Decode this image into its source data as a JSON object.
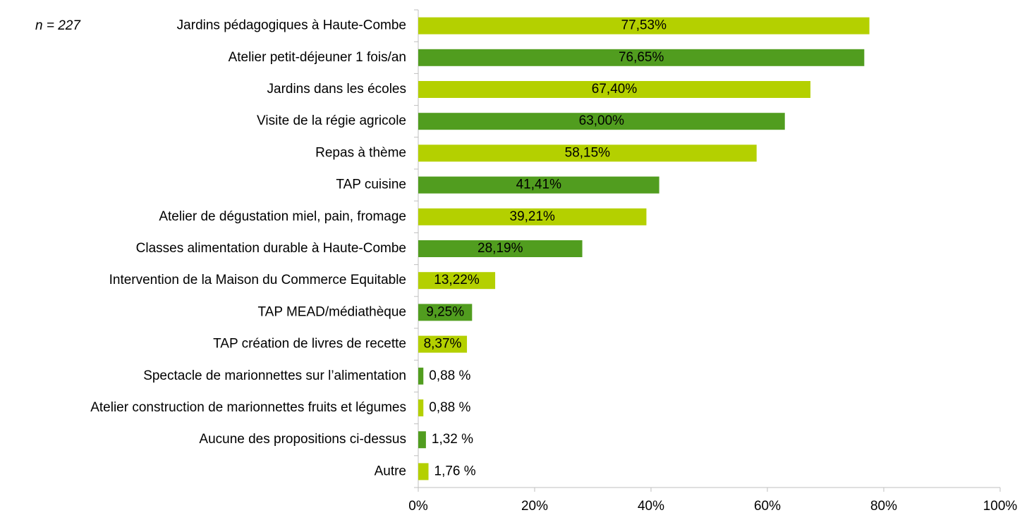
{
  "chart_data": {
    "type": "hbar",
    "annotation": "n = 227",
    "categories": [
      "Jardins pédagogiques à Haute-Combe",
      "Atelier petit-déjeuner 1 fois/an",
      "Jardins dans les écoles",
      "Visite de la régie agricole",
      "Repas à thème",
      "TAP cuisine",
      "Atelier de dégustation miel, pain, fromage",
      "Classes alimentation durable à Haute-Combe",
      "Intervention de la Maison du Commerce Equitable",
      "TAP MEAD/médiathèque",
      "TAP création de livres de recette",
      "Spectacle de marionnettes sur l’alimentation",
      "Atelier construction de marionnettes fruits et légumes",
      "Aucune des propositions ci-dessus",
      "Autre"
    ],
    "values": [
      77.53,
      76.65,
      67.4,
      63.0,
      58.15,
      41.41,
      39.21,
      28.19,
      13.22,
      9.25,
      8.37,
      0.88,
      0.88,
      1.32,
      1.76
    ],
    "value_labels": [
      "77,53%",
      "76,65%",
      "67,40%",
      "63,00%",
      "58,15%",
      "41,41%",
      "39,21%",
      "28,19%",
      "13,22%",
      "9,25%",
      "8,37%",
      "0,88 %",
      "0,88 %",
      "1,32 %",
      "1,76 %"
    ],
    "colors": [
      "#b4d000",
      "#519d1f",
      "#b4d000",
      "#519d1f",
      "#b4d000",
      "#519d1f",
      "#b4d000",
      "#519d1f",
      "#b4d000",
      "#519d1f",
      "#b4d000",
      "#519d1f",
      "#b4d000",
      "#519d1f",
      "#b4d000"
    ],
    "value_label_colors": [
      "#000000",
      "#ffffff",
      "#000000",
      "#ffffff",
      "#000000",
      "#ffffff",
      "#000000",
      "#ffffff",
      "#000000",
      "#ffffff",
      "#000000",
      "#000000",
      "#000000",
      "#000000",
      "#000000"
    ],
    "xlim": [
      0,
      100
    ],
    "xticks": [
      {
        "value": 0,
        "label": "0%"
      },
      {
        "value": 20,
        "label": "20%"
      },
      {
        "value": 40,
        "label": "40%"
      },
      {
        "value": 60,
        "label": "60%"
      },
      {
        "value": 80,
        "label": "80%"
      },
      {
        "value": 100,
        "label": "100%"
      }
    ]
  }
}
